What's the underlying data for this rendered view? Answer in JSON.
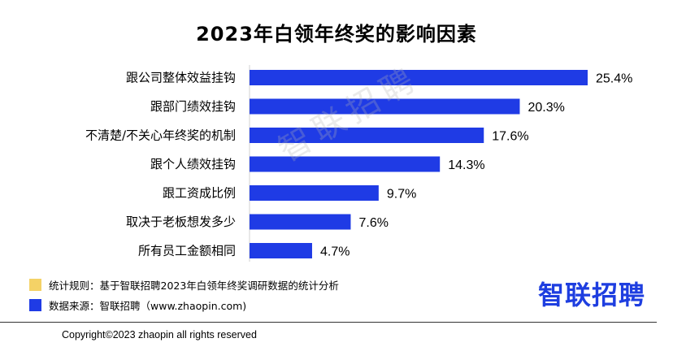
{
  "title": "2023年白领年终奖的影响因素",
  "watermark": "智联招聘",
  "chart_data": {
    "type": "bar",
    "orientation": "horizontal",
    "categories": [
      "跟公司整体效益挂钩",
      "跟部门绩效挂钩",
      "不清楚/不关心年终奖的机制",
      "跟个人绩效挂钩",
      "跟工资成比例",
      "取决于老板想发多少",
      "所有员工金额相同"
    ],
    "values": [
      25.4,
      20.3,
      17.6,
      14.3,
      9.7,
      7.6,
      4.7
    ],
    "value_labels": [
      "25.4%",
      "20.3%",
      "17.6%",
      "14.3%",
      "9.7%",
      "7.6%",
      "4.7%"
    ],
    "unit": "%",
    "xlim": [
      0,
      25.4
    ],
    "bar_color": "#1f3be5",
    "grid": false,
    "title": "2023年白领年终奖的影响因素"
  },
  "legend": [
    {
      "color": "#f4d266",
      "text": "统计规则：基于智联招聘2023年白领年终奖调研数据的统计分析"
    },
    {
      "color": "#1f3be5",
      "text": "数据来源：智联招聘（www.zhaopin.com)"
    }
  ],
  "brand_logo": "智联招聘",
  "copyright": "Copyright©2023 zhaopin all rights reserved"
}
